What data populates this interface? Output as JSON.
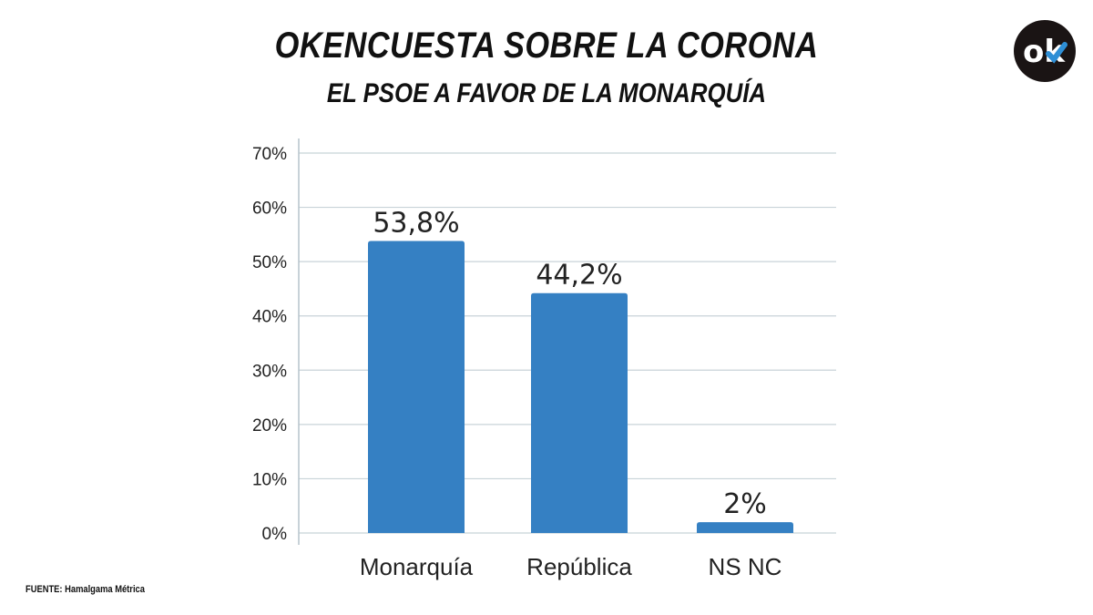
{
  "header": {
    "title": "OKENCUESTA SOBRE LA CORONA",
    "subtitle": "EL PSOE A FAVOR DE LA MONARQUÍA"
  },
  "logo": {
    "text": "ok",
    "icon": "ok-logo-icon",
    "background": "#1a1414",
    "accent": "#2e8fd6"
  },
  "source": "FUENTE: Hamalgama Métrica",
  "chart_data": {
    "type": "bar",
    "categories": [
      "Monarquía",
      "República",
      "NS NC"
    ],
    "values": [
      53.8,
      44.2,
      2
    ],
    "data_labels": [
      "53,8%",
      "44,2%",
      "2%"
    ],
    "yticks": [
      0,
      10,
      20,
      30,
      40,
      50,
      60,
      70
    ],
    "ytick_labels": [
      "0%",
      "10%",
      "20%",
      "30%",
      "40%",
      "50%",
      "60%",
      "70%"
    ],
    "ylim": [
      0,
      70
    ],
    "grid": true,
    "legend": "none",
    "bar_color": "#3580c3"
  }
}
